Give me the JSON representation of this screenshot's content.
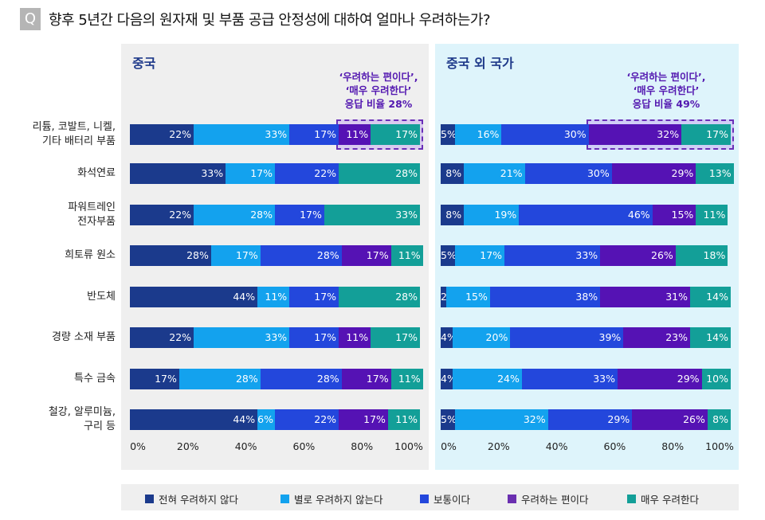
{
  "header": {
    "icon": "Q",
    "title": "향후 5년간 다음의 원자재 및 부품 공급 안정성에 대하여 얼마나 우려하는가?"
  },
  "chart_data": {
    "type": "bar",
    "orientation": "horizontal-stacked-100",
    "categories": [
      "리튬, 코발트, 니켈,\n기타 배터리 부품",
      "화석연료",
      "파워트레인\n전자부품",
      "희토류 원소",
      "반도체",
      "경량 소재 부품",
      "특수 금속",
      "철강, 알루미늄,\n구리 등"
    ],
    "xlim": [
      0,
      100
    ],
    "x_ticks": [
      "0%",
      "20%",
      "40%",
      "60%",
      "80%",
      "100%"
    ],
    "legend_position": "bottom",
    "series_names": [
      "전혀 우려하지 않다",
      "별로 우려하지 않는다",
      "보통이다",
      "우려하는 편이다",
      "매우 우려한다"
    ],
    "colors": [
      "#1b3a8c",
      "#13a2ee",
      "#2347dc",
      "#5512b4",
      "#139f98"
    ],
    "legend_colors": [
      "#1b3a8c",
      "#13a2ee",
      "#2347dc",
      "#6a2fb0",
      "#139f98"
    ],
    "panels": [
      {
        "title": "중국",
        "annotation": "‘우려하는 편이다’,\n‘매우 우려한다’\n응답 비율 28%",
        "values": [
          [
            22,
            33,
            17,
            11,
            17
          ],
          [
            33,
            17,
            22,
            0,
            28
          ],
          [
            22,
            28,
            17,
            0,
            33
          ],
          [
            28,
            17,
            28,
            17,
            11
          ],
          [
            44,
            11,
            17,
            0,
            28
          ],
          [
            22,
            33,
            17,
            11,
            17
          ],
          [
            17,
            28,
            28,
            17,
            11
          ],
          [
            44,
            6,
            22,
            17,
            11
          ]
        ]
      },
      {
        "title": "중국 외 국가",
        "annotation": "‘우려하는 편이다’,\n‘매우 우려한다’\n응답 비율 49%",
        "values": [
          [
            5,
            16,
            30,
            32,
            17
          ],
          [
            8,
            21,
            30,
            29,
            13
          ],
          [
            8,
            19,
            46,
            15,
            11
          ],
          [
            5,
            17,
            33,
            26,
            18
          ],
          [
            2,
            15,
            38,
            31,
            14
          ],
          [
            4,
            20,
            39,
            23,
            14
          ],
          [
            4,
            24,
            33,
            29,
            10
          ],
          [
            5,
            32,
            29,
            26,
            8
          ]
        ]
      }
    ]
  }
}
